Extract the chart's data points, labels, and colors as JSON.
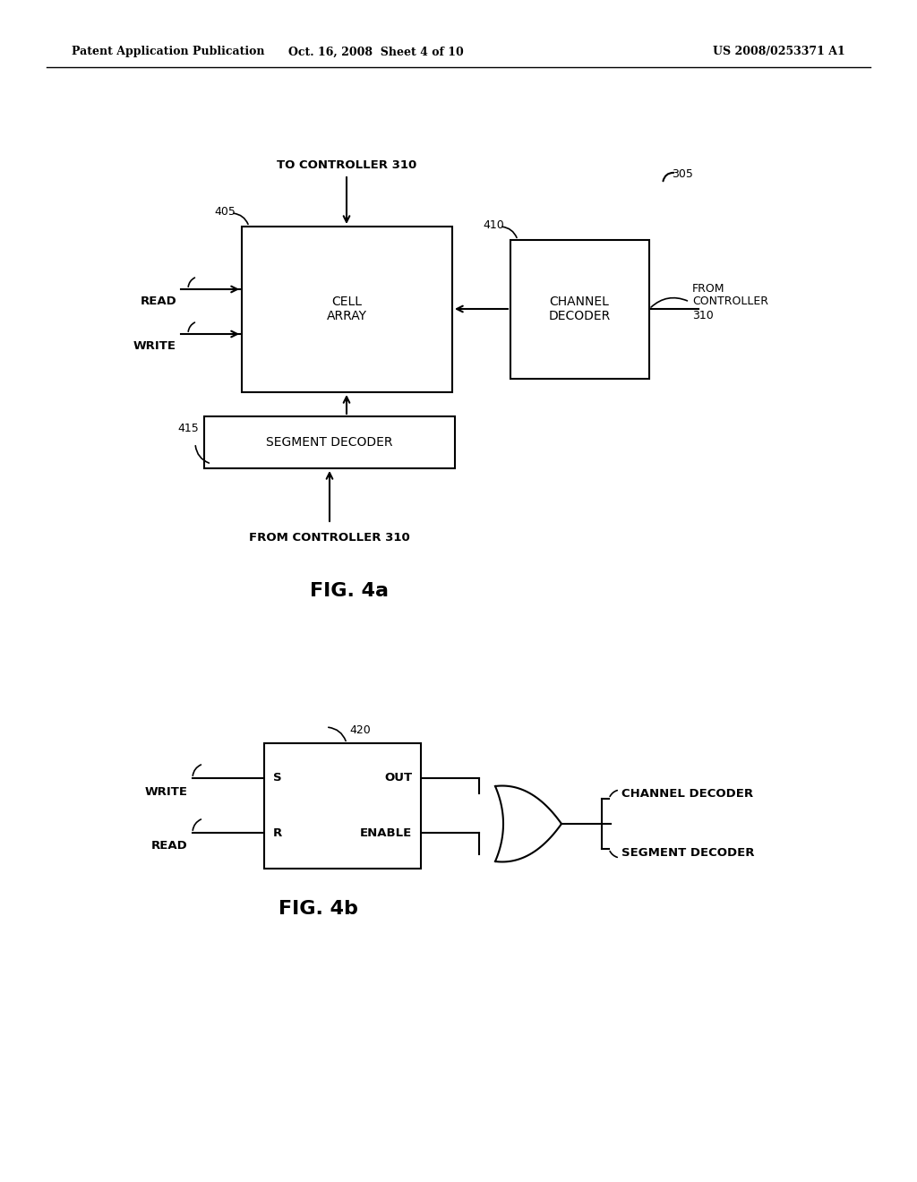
{
  "bg_color": "#ffffff",
  "header_left": "Patent Application Publication",
  "header_mid": "Oct. 16, 2008  Sheet 4 of 10",
  "header_right": "US 2008/0253371 A1",
  "fig4a": {
    "caption": "FIG. 4a",
    "label_cell_array": "CELL\nARRAY",
    "label_channel_decoder": "CHANNEL\nDECODER",
    "label_segment_decoder": "SEGMENT DECODER",
    "label_405": "405",
    "label_410": "410",
    "label_415": "415",
    "label_305": "305",
    "label_read": "READ",
    "label_write": "WRITE",
    "label_to_controller": "TO CONTROLLER 310",
    "label_from_controller_right": "FROM\nCONTROLLER\n310",
    "label_from_controller_bottom": "FROM CONTROLLER 310"
  },
  "fig4b": {
    "caption": "FIG. 4b",
    "label_420": "420",
    "label_s": "S",
    "label_r": "R",
    "label_out": "OUT",
    "label_enable": "ENABLE",
    "label_write": "WRITE",
    "label_read": "READ",
    "label_channel_decoder": "CHANNEL DECODER",
    "label_segment_decoder": "SEGMENT DECODER"
  }
}
